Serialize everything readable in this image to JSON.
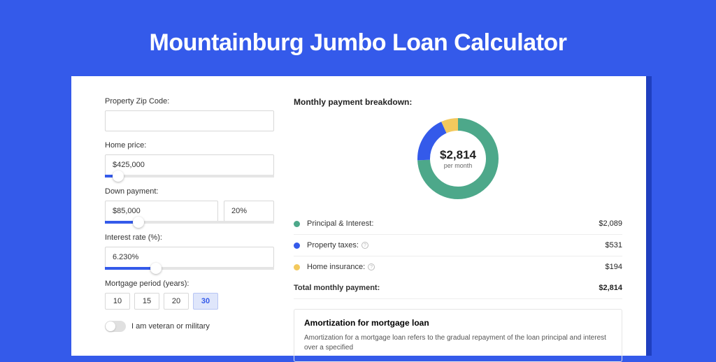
{
  "page": {
    "title": "Mountainburg Jumbo Loan Calculator",
    "bg_color": "#345aea",
    "accent_color": "#345aea"
  },
  "form": {
    "zip": {
      "label": "Property Zip Code:",
      "value": ""
    },
    "price": {
      "label": "Home price:",
      "value": "$425,000",
      "slider_pct": 8
    },
    "down": {
      "label": "Down payment:",
      "amount": "$85,000",
      "pct": "20%",
      "slider_pct": 20
    },
    "rate": {
      "label": "Interest rate (%):",
      "value": "6.230%",
      "slider_pct": 30
    },
    "period": {
      "label": "Mortgage period (years):",
      "options": [
        "10",
        "15",
        "20",
        "30"
      ],
      "selected": "30"
    },
    "veteran": {
      "label": "I am veteran or military",
      "on": false
    }
  },
  "breakdown": {
    "title": "Monthly payment breakdown:",
    "donut": {
      "amount": "$2,814",
      "sub": "per month",
      "slices": [
        {
          "color": "#4da88a",
          "pct": 74.2
        },
        {
          "color": "#345aea",
          "pct": 18.9
        },
        {
          "color": "#f3c95d",
          "pct": 6.9
        }
      ],
      "thickness": 18
    },
    "rows": [
      {
        "label": "Principal & Interest:",
        "value": "$2,089",
        "color": "#4da88a",
        "info": false
      },
      {
        "label": "Property taxes:",
        "value": "$531",
        "color": "#345aea",
        "info": true
      },
      {
        "label": "Home insurance:",
        "value": "$194",
        "color": "#f3c95d",
        "info": true
      }
    ],
    "total": {
      "label": "Total monthly payment:",
      "value": "$2,814"
    }
  },
  "amort": {
    "title": "Amortization for mortgage loan",
    "text": "Amortization for a mortgage loan refers to the gradual repayment of the loan principal and interest over a specified"
  }
}
